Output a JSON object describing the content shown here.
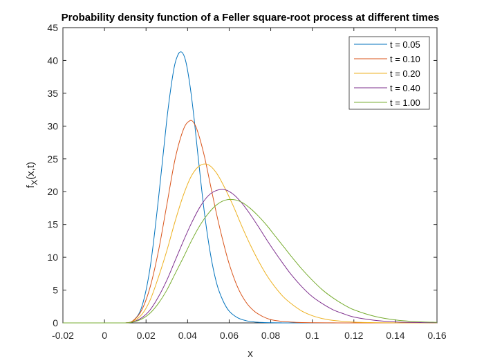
{
  "chart_data": {
    "type": "line",
    "title": "Probability density function of a Feller square-root process at different times",
    "xlabel": "x",
    "ylabel_main": "f",
    "ylabel_sub": "X",
    "ylabel_rest": "(x,t)",
    "xlim": [
      -0.02,
      0.16
    ],
    "ylim": [
      0,
      45
    ],
    "xticks": [
      -0.02,
      0,
      0.02,
      0.04,
      0.06,
      0.08,
      0.1,
      0.12,
      0.14,
      0.16
    ],
    "xtick_labels": [
      "-0.02",
      "0",
      "0.02",
      "0.04",
      "0.06",
      "0.08",
      "0.1",
      "0.12",
      "0.14",
      "0.16"
    ],
    "yticks": [
      0,
      5,
      10,
      15,
      20,
      25,
      30,
      35,
      40,
      45
    ],
    "ytick_labels": [
      "0",
      "5",
      "10",
      "15",
      "20",
      "25",
      "30",
      "35",
      "40",
      "45"
    ],
    "grid": false,
    "legend_position": "top-right",
    "series": [
      {
        "name": "t = 0.05",
        "color": "#0072BD",
        "x": [
          -0.02,
          0.0,
          0.01,
          0.014,
          0.018,
          0.022,
          0.026,
          0.03,
          0.033,
          0.035,
          0.037,
          0.039,
          0.041,
          0.043,
          0.045,
          0.048,
          0.051,
          0.054,
          0.057,
          0.06,
          0.064,
          0.068,
          0.072,
          0.076,
          0.08,
          0.085,
          0.09,
          0.16
        ],
        "y": [
          0,
          0,
          0,
          0.4,
          2.5,
          8.5,
          19,
          31,
          38,
          40.6,
          41.3,
          40,
          36.5,
          31.5,
          25.5,
          17,
          10.5,
          6,
          3.4,
          1.8,
          0.8,
          0.35,
          0.15,
          0.06,
          0.02,
          0.01,
          0,
          0
        ]
      },
      {
        "name": "t = 0.10",
        "color": "#D95319",
        "x": [
          -0.02,
          0.0,
          0.01,
          0.014,
          0.018,
          0.022,
          0.026,
          0.03,
          0.034,
          0.038,
          0.041,
          0.043,
          0.045,
          0.048,
          0.051,
          0.054,
          0.057,
          0.06,
          0.064,
          0.068,
          0.072,
          0.076,
          0.08,
          0.085,
          0.09,
          0.095,
          0.1,
          0.11,
          0.12,
          0.16
        ],
        "y": [
          0,
          0,
          0,
          0.4,
          2,
          5.5,
          11,
          18,
          25,
          29.5,
          30.8,
          30.5,
          29,
          25.5,
          21,
          16.5,
          12.5,
          9,
          5.5,
          3.2,
          1.8,
          1,
          0.5,
          0.25,
          0.12,
          0.05,
          0.02,
          0.01,
          0,
          0
        ]
      },
      {
        "name": "t = 0.20",
        "color": "#EDB120",
        "x": [
          -0.02,
          0.0,
          0.01,
          0.014,
          0.018,
          0.022,
          0.026,
          0.03,
          0.034,
          0.038,
          0.042,
          0.046,
          0.05,
          0.054,
          0.058,
          0.062,
          0.066,
          0.07,
          0.074,
          0.078,
          0.082,
          0.086,
          0.09,
          0.095,
          0.1,
          0.105,
          0.11,
          0.12,
          0.13,
          0.14,
          0.16
        ],
        "y": [
          0,
          0,
          0,
          0.3,
          1.3,
          3.5,
          7,
          11,
          15.5,
          19.5,
          22.5,
          24,
          24.1,
          22.8,
          20.5,
          17.8,
          14.8,
          12,
          9.5,
          7.3,
          5.5,
          4,
          2.9,
          1.8,
          1.1,
          0.65,
          0.38,
          0.12,
          0.04,
          0.01,
          0
        ]
      },
      {
        "name": "t = 0.40",
        "color": "#7E2F8E",
        "x": [
          -0.02,
          0.0,
          0.01,
          0.014,
          0.018,
          0.022,
          0.026,
          0.03,
          0.034,
          0.038,
          0.042,
          0.046,
          0.05,
          0.054,
          0.058,
          0.062,
          0.066,
          0.07,
          0.074,
          0.078,
          0.082,
          0.086,
          0.09,
          0.095,
          0.1,
          0.105,
          0.11,
          0.115,
          0.12,
          0.13,
          0.14,
          0.15,
          0.16
        ],
        "y": [
          0,
          0,
          0,
          0.2,
          0.8,
          2,
          4,
          6.5,
          9.5,
          12.5,
          15.3,
          17.7,
          19.4,
          20.2,
          20.3,
          19.6,
          18.3,
          16.6,
          14.7,
          12.7,
          10.8,
          9,
          7.3,
          5.5,
          4,
          2.9,
          2,
          1.4,
          0.9,
          0.4,
          0.15,
          0.06,
          0.02
        ]
      },
      {
        "name": "t = 1.00",
        "color": "#77AC30",
        "x": [
          -0.02,
          0.0,
          0.01,
          0.014,
          0.018,
          0.022,
          0.026,
          0.03,
          0.034,
          0.038,
          0.042,
          0.046,
          0.05,
          0.054,
          0.058,
          0.062,
          0.066,
          0.07,
          0.074,
          0.078,
          0.082,
          0.086,
          0.09,
          0.095,
          0.1,
          0.105,
          0.11,
          0.115,
          0.12,
          0.13,
          0.14,
          0.15,
          0.16
        ],
        "y": [
          0,
          0,
          0,
          0.15,
          0.6,
          1.5,
          3,
          5,
          7.5,
          10,
          12.6,
          14.9,
          16.7,
          18,
          18.7,
          18.8,
          18.4,
          17.5,
          16.3,
          14.9,
          13.3,
          11.7,
          10.1,
          8.2,
          6.5,
          5,
          3.8,
          2.8,
          2,
          1,
          0.45,
          0.2,
          0.08
        ]
      }
    ]
  }
}
